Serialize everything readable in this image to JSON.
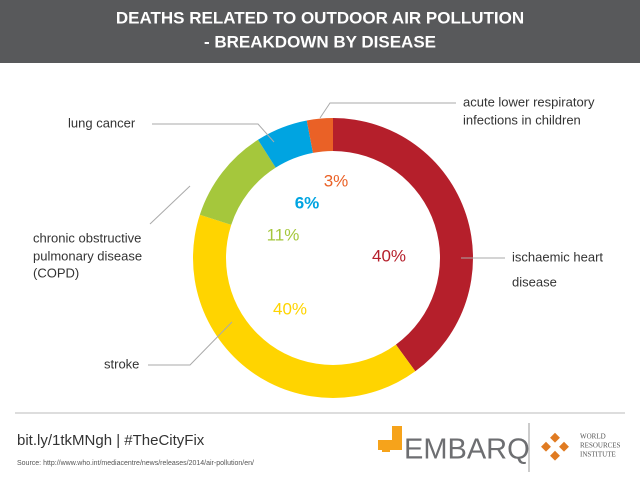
{
  "chart_data": {
    "type": "donut",
    "title": [
      "DEATHS RELATED TO OUTDOOR AIR POLLUTION",
      "- BREAKDOWN BY DISEASE"
    ],
    "categories": [
      [
        "ischaemic heart",
        "disease"
      ],
      [
        "stroke"
      ],
      [
        "chronic obstructive",
        "pulmonary disease",
        "(COPD)"
      ],
      [
        "lung cancer"
      ],
      [
        "acute lower respiratory",
        "infections in children"
      ]
    ],
    "values": [
      40,
      40,
      11,
      6,
      3
    ],
    "value_labels": [
      "40%",
      "40%",
      "11%",
      "6%",
      "3%"
    ],
    "colors": [
      "#b51f2b",
      "#ffd400",
      "#a5c73c",
      "#00a4e1",
      "#ea6126"
    ]
  },
  "footer": {
    "link": "bit.ly/1tkMNgh | #TheCityFix",
    "source": "Source: http://www.who.int/mediacentre/news/releases/2014/air-pollution/en/"
  },
  "logos": {
    "embarq": "EMBARQ",
    "wri": [
      "WORLD",
      "RESOURCES",
      "INSTITUTE"
    ]
  }
}
